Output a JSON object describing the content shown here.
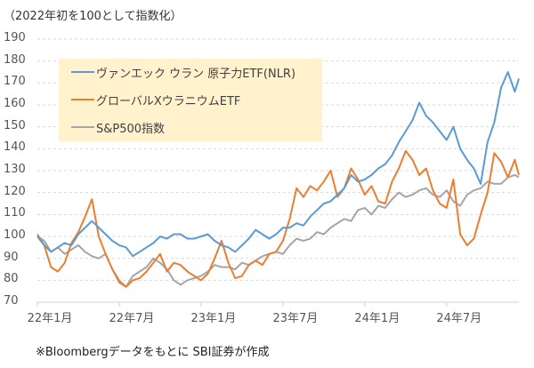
{
  "chart_data": {
    "type": "line",
    "title": "",
    "subtitle": "（2022年初を100として指数化）",
    "xlabel": "",
    "ylabel": "",
    "ylim": [
      70,
      190
    ],
    "yticks": [
      "190",
      "180",
      "170",
      "160",
      "150",
      "140",
      "130",
      "120",
      "110",
      "100",
      "90",
      "80",
      "70"
    ],
    "xticks": [
      "22年1月",
      "22年7月",
      "23年1月",
      "23年7月",
      "24年1月",
      "24年7月"
    ],
    "x_range_months": [
      0,
      35.3
    ],
    "grid": true,
    "legend_position": "top-left",
    "x_months": [
      0,
      0.5,
      1,
      1.5,
      2,
      2.5,
      3,
      3.5,
      4,
      4.5,
      5,
      5.5,
      6,
      6.5,
      7,
      7.5,
      8,
      8.5,
      9,
      9.5,
      10,
      10.5,
      11,
      11.5,
      12,
      12.5,
      13,
      13.5,
      14,
      14.5,
      15,
      15.5,
      16,
      16.5,
      17,
      17.5,
      18,
      18.5,
      19,
      19.5,
      20,
      20.5,
      21,
      21.5,
      22,
      22.5,
      23,
      23.5,
      24,
      24.5,
      25,
      25.5,
      26,
      26.5,
      27,
      27.5,
      28,
      28.5,
      29,
      29.5,
      30,
      30.5,
      31,
      31.5,
      32,
      32.5,
      33,
      33.5,
      34,
      34.5,
      35,
      35.3
    ],
    "series": [
      {
        "name": "ヴァンエック ウラン 原子力ETF(NLR)",
        "color": "#5b9bd5",
        "values": [
          100,
          96,
          93,
          95,
          97,
          96,
          101,
          104,
          107,
          104,
          101,
          98,
          96,
          95,
          91,
          93,
          95,
          97,
          100,
          99,
          101,
          101,
          99,
          99,
          100,
          101,
          98,
          96,
          95,
          93,
          96,
          99,
          103,
          101,
          99,
          101,
          104,
          104,
          106,
          105,
          109,
          112,
          115,
          116,
          119,
          122,
          128,
          125,
          126,
          128,
          131,
          133,
          137,
          143,
          148,
          153,
          161,
          155,
          152,
          148,
          144,
          150,
          140,
          135,
          131,
          124,
          143,
          152,
          168,
          175,
          166,
          172
        ]
      },
      {
        "name": "グローバルXウラニウムETF",
        "color": "#ed7d31",
        "values": [
          101,
          96,
          86,
          84,
          88,
          97,
          102,
          109,
          117,
          100,
          92,
          85,
          79,
          77,
          80,
          81,
          84,
          88,
          92,
          84,
          88,
          87,
          84,
          82,
          80,
          83,
          90,
          98,
          88,
          81,
          82,
          87,
          89,
          87,
          92,
          93,
          98,
          108,
          122,
          118,
          123,
          121,
          125,
          130,
          118,
          122,
          131,
          126,
          119,
          123,
          116,
          115,
          125,
          131,
          139,
          135,
          128,
          131,
          121,
          115,
          113,
          126,
          101,
          96,
          99,
          110,
          120,
          138,
          134,
          127,
          135,
          128
        ]
      },
      {
        "name": "S&P500指数",
        "color": "#a5a5a5",
        "values": [
          100,
          98,
          93,
          95,
          92,
          94,
          96,
          93,
          91,
          90,
          92,
          85,
          80,
          77,
          82,
          84,
          86,
          90,
          88,
          85,
          80,
          78,
          80,
          81,
          82,
          84,
          87,
          86,
          86,
          85,
          88,
          87,
          89,
          91,
          92,
          93,
          92,
          96,
          99,
          98,
          99,
          102,
          101,
          104,
          106,
          108,
          107,
          112,
          113,
          110,
          114,
          113,
          117,
          120,
          118,
          119,
          121,
          122,
          119,
          118,
          121,
          116,
          114,
          119,
          121,
          122,
          125,
          124,
          124,
          127,
          128,
          127
        ]
      }
    ]
  },
  "footnote": "※Bloombergデータをもとに SBI証券が作成"
}
